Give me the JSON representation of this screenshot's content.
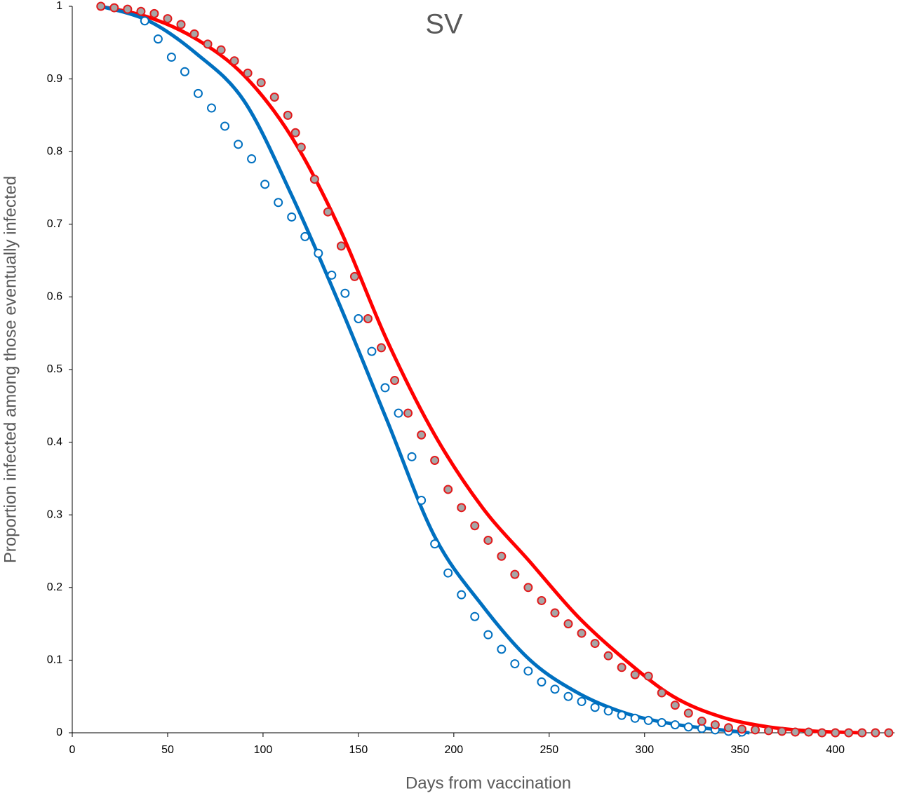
{
  "chart_data": {
    "type": "scatter",
    "title": "SV",
    "xlabel": "Days from vaccination",
    "ylabel": "Proportion infected among those eventually infected",
    "xlim": [
      0,
      431
    ],
    "xticks": [
      0,
      50,
      100,
      150,
      200,
      250,
      300,
      350,
      400
    ],
    "ylim": [
      0,
      1
    ],
    "yticks": [
      0,
      0.1,
      0.2,
      0.3,
      0.4,
      0.5,
      0.6,
      0.7,
      0.8,
      0.9,
      1
    ],
    "grid": false,
    "series": [
      {
        "mode": "line",
        "color": "#ff0000",
        "x": [
          15,
          40,
          65,
          90,
          115,
          140,
          165,
          190,
          215,
          240,
          265,
          290,
          315,
          340,
          365,
          390,
          415
        ],
        "values": [
          1.0,
          0.985,
          0.955,
          0.905,
          0.82,
          0.695,
          0.54,
          0.41,
          0.31,
          0.235,
          0.16,
          0.1,
          0.05,
          0.022,
          0.008,
          0.002,
          0.0
        ]
      },
      {
        "mode": "line",
        "color": "#0070c0",
        "x": [
          15,
          40,
          65,
          90,
          115,
          140,
          165,
          190,
          215,
          240,
          265,
          290,
          315,
          340,
          355
        ],
        "values": [
          1.0,
          0.98,
          0.935,
          0.87,
          0.74,
          0.59,
          0.43,
          0.27,
          0.175,
          0.1,
          0.055,
          0.027,
          0.012,
          0.004,
          0.0
        ]
      },
      {
        "mode": "markers",
        "color": "#0070c0",
        "marker_fill": "#ffffff",
        "x": [
          38,
          45,
          52,
          59,
          66,
          73,
          80,
          87,
          94,
          101,
          108,
          115,
          122,
          129,
          136,
          143,
          150,
          157,
          164,
          171,
          178,
          183,
          190,
          197,
          204,
          211,
          218,
          225,
          232,
          239,
          246,
          253,
          260,
          267,
          274,
          281,
          288,
          295,
          302,
          309,
          316,
          323,
          330,
          337,
          344,
          351
        ],
        "values": [
          0.98,
          0.955,
          0.93,
          0.91,
          0.88,
          0.86,
          0.835,
          0.81,
          0.79,
          0.755,
          0.73,
          0.71,
          0.683,
          0.66,
          0.63,
          0.605,
          0.57,
          0.525,
          0.475,
          0.44,
          0.38,
          0.32,
          0.26,
          0.22,
          0.19,
          0.16,
          0.135,
          0.115,
          0.095,
          0.085,
          0.07,
          0.06,
          0.05,
          0.043,
          0.035,
          0.03,
          0.024,
          0.02,
          0.017,
          0.014,
          0.011,
          0.008,
          0.006,
          0.004,
          0.002,
          0.001
        ]
      },
      {
        "mode": "markers",
        "color": "#e31a1c",
        "marker_fill": "#a6a6a6",
        "x": [
          15,
          22,
          29,
          36,
          43,
          50,
          57,
          64,
          71,
          78,
          85,
          92,
          99,
          106,
          113,
          117,
          120,
          127,
          134,
          141,
          148,
          155,
          162,
          169,
          176,
          183,
          190,
          197,
          204,
          211,
          218,
          225,
          232,
          239,
          246,
          253,
          260,
          267,
          274,
          281,
          288,
          295,
          302,
          309,
          316,
          323,
          330,
          337,
          344,
          351,
          358,
          365,
          372,
          379,
          386,
          393,
          400,
          407,
          414,
          421,
          428
        ],
        "values": [
          1.0,
          0.998,
          0.996,
          0.993,
          0.99,
          0.983,
          0.975,
          0.962,
          0.948,
          0.94,
          0.925,
          0.908,
          0.895,
          0.875,
          0.85,
          0.826,
          0.806,
          0.762,
          0.717,
          0.67,
          0.628,
          0.57,
          0.53,
          0.485,
          0.44,
          0.41,
          0.375,
          0.335,
          0.31,
          0.285,
          0.265,
          0.243,
          0.218,
          0.2,
          0.182,
          0.165,
          0.15,
          0.137,
          0.123,
          0.106,
          0.09,
          0.08,
          0.078,
          0.055,
          0.038,
          0.027,
          0.016,
          0.011,
          0.007,
          0.005,
          0.004,
          0.003,
          0.002,
          0.001,
          0.001,
          0,
          0,
          0,
          0,
          0,
          0
        ]
      }
    ]
  }
}
